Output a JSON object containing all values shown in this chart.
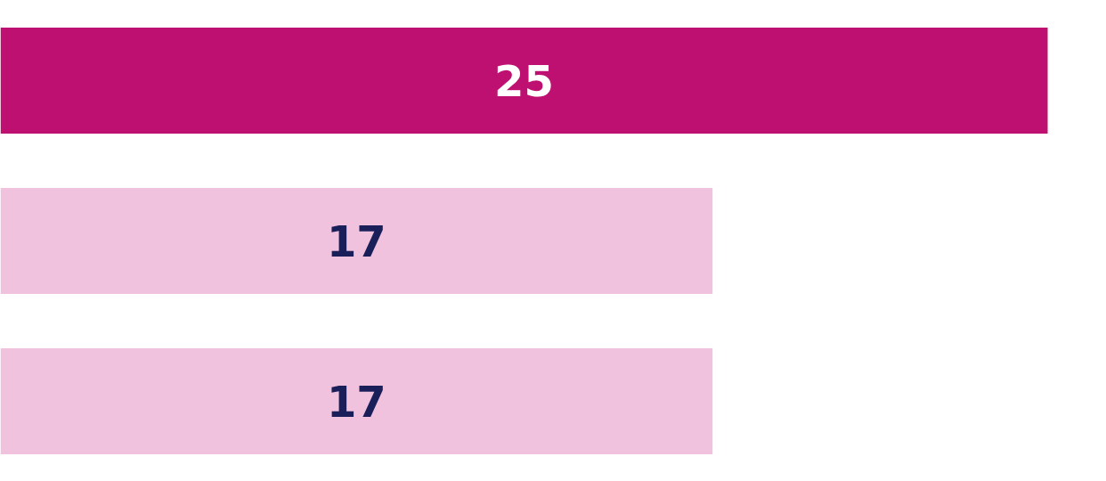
{
  "chart_data": {
    "type": "bar",
    "orientation": "horizontal",
    "categories": [
      null,
      null,
      null
    ],
    "values": [
      25,
      17,
      17
    ],
    "colors": [
      "#be1070",
      "#f0c2dd",
      "#f0c2dd"
    ],
    "data_labels": true,
    "grid": false,
    "tick_labels": false
  }
}
